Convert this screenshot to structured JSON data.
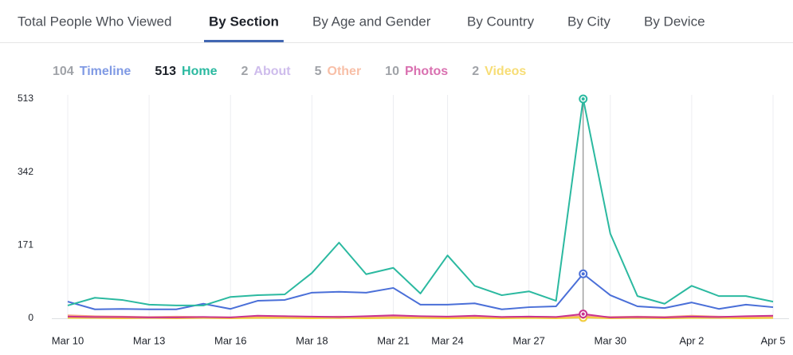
{
  "tabs": [
    "Total People Who Viewed",
    "By Section",
    "By Age and Gender",
    "By Country",
    "By City",
    "By Device"
  ],
  "active_tab": 1,
  "chart_data": {
    "type": "line",
    "categories": [
      "Mar 10",
      null,
      null,
      "Mar 13",
      null,
      null,
      "Mar 16",
      null,
      null,
      "Mar 18",
      null,
      null,
      "Mar 21",
      null,
      "Mar 24",
      null,
      null,
      "Mar 27",
      null,
      null,
      "Mar 30",
      null,
      null,
      "Apr 2",
      null,
      null,
      "Apr 5"
    ],
    "cursor_index": 19,
    "ylim": [
      0,
      513
    ],
    "yticks": [
      0,
      171,
      342,
      513
    ],
    "series": [
      {
        "name": "Timeline",
        "color": "#4a6fd8",
        "values": [
          39,
          21,
          22,
          21,
          21,
          34,
          22,
          41,
          43,
          60,
          62,
          60,
          71,
          32,
          32,
          35,
          21,
          26,
          28,
          104,
          54,
          28,
          24,
          37,
          22,
          32,
          26
        ]
      },
      {
        "name": "Home",
        "color": "#2bb9a0",
        "values": [
          30,
          48,
          43,
          32,
          30,
          30,
          50,
          54,
          56,
          106,
          177,
          103,
          118,
          58,
          147,
          76,
          54,
          63,
          41,
          513,
          198,
          52,
          34,
          76,
          52,
          52,
          39
        ]
      },
      {
        "name": "About",
        "color": "#b9a0e4",
        "values": [
          3,
          2,
          2,
          1,
          2,
          1,
          2,
          3,
          2,
          2,
          1,
          2,
          3,
          2,
          1,
          2,
          2,
          1,
          2,
          2,
          1,
          2,
          1,
          2,
          2,
          1,
          2
        ]
      },
      {
        "name": "Other",
        "color": "#f5a482",
        "values": [
          7,
          5,
          4,
          3,
          4,
          3,
          2,
          4,
          5,
          3,
          4,
          3,
          5,
          4,
          3,
          4,
          3,
          4,
          3,
          5,
          3,
          4,
          3,
          6,
          4,
          3,
          5
        ]
      },
      {
        "name": "Photos",
        "color": "#c9338f",
        "values": [
          4,
          3,
          3,
          2,
          2,
          3,
          2,
          6,
          5,
          4,
          3,
          5,
          7,
          5,
          4,
          6,
          3,
          4,
          3,
          10,
          2,
          3,
          2,
          4,
          3,
          5,
          6
        ]
      },
      {
        "name": "Videos",
        "color": "#f4cf3a",
        "values": [
          1,
          1,
          0,
          1,
          0,
          1,
          0,
          1,
          1,
          0,
          1,
          0,
          1,
          1,
          0,
          1,
          0,
          1,
          0,
          2,
          0,
          1,
          0,
          1,
          1,
          0,
          1
        ]
      }
    ]
  }
}
